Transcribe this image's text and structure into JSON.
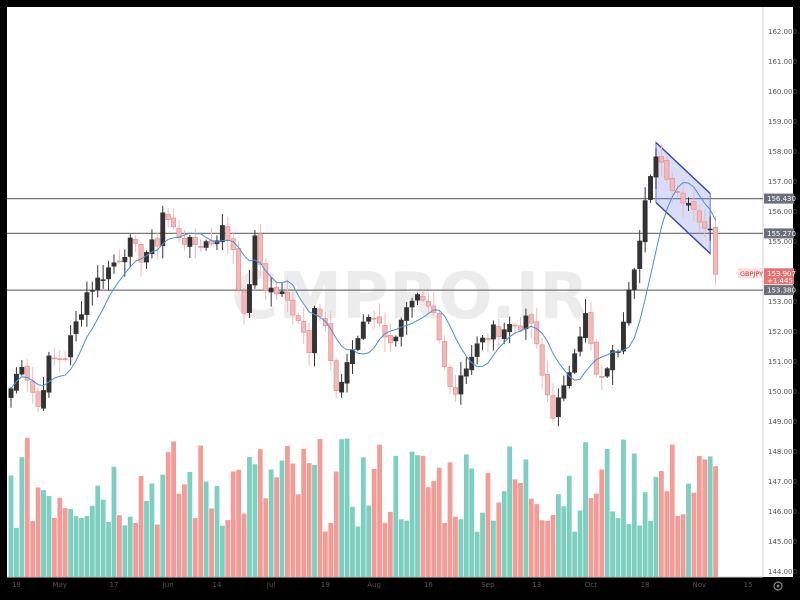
{
  "chart_data": {
    "type": "candlestick",
    "symbol": "GBPJPY",
    "watermark": "CMPRO.IR",
    "y_axis": {
      "range": [
        143.85,
        162.45
      ],
      "ticks": [
        "162.000",
        "161.000",
        "160.000",
        "159.000",
        "158.000",
        "157.000",
        "156.000",
        "155.000",
        "154.000",
        "153.000",
        "152.000",
        "151.000",
        "150.000",
        "149.000",
        "148.000",
        "147.000",
        "146.000",
        "145.000",
        "144.000"
      ]
    },
    "x_axis_labels": [
      {
        "label": "19",
        "index": 1
      },
      {
        "label": "May",
        "index": 9
      },
      {
        "label": "17",
        "index": 19
      },
      {
        "label": "Jun",
        "index": 29
      },
      {
        "label": "14",
        "index": 38
      },
      {
        "label": "Jul",
        "index": 48
      },
      {
        "label": "19",
        "index": 58
      },
      {
        "label": "Aug",
        "index": 67
      },
      {
        "label": "16",
        "index": 77
      },
      {
        "label": "Sep",
        "index": 88
      },
      {
        "label": "13",
        "index": 97
      },
      {
        "label": "Oct",
        "index": 107
      },
      {
        "label": "18",
        "index": 117
      },
      {
        "label": "Nov",
        "index": 127
      },
      {
        "label": "15",
        "index": 136
      }
    ],
    "levels": [
      {
        "value": 156.43,
        "label": "156.430"
      },
      {
        "value": 155.27,
        "label": "155.270"
      },
      {
        "value": 153.38,
        "label": "153.380"
      }
    ],
    "last_price": {
      "value": 153.907,
      "label": "153.907",
      "change": "+1.445"
    },
    "ma_color": "#4a90d9",
    "up_color": "#333333",
    "down_color": "#f2b9b9",
    "vol_up_color": "#7ecfc0",
    "vol_down_color": "#f29c98",
    "channel": {
      "p1": [
        119,
        158.3
      ],
      "p2": [
        129,
        156.6
      ],
      "p3": [
        129,
        154.6
      ],
      "p4": [
        119,
        156.3
      ],
      "color": "#7b86e6"
    },
    "waypoints": [
      [
        0,
        150.1
      ],
      [
        2,
        151.0
      ],
      [
        5,
        149.5
      ],
      [
        7,
        151.0
      ],
      [
        10,
        151.2
      ],
      [
        14,
        153.3
      ],
      [
        19,
        154.3
      ],
      [
        22,
        154.9
      ],
      [
        24,
        154.5
      ],
      [
        27,
        155.0
      ],
      [
        28,
        156.0
      ],
      [
        30,
        155.4
      ],
      [
        33,
        154.9
      ],
      [
        37,
        155.0
      ],
      [
        39,
        155.4
      ],
      [
        41,
        154.8
      ],
      [
        43,
        152.4
      ],
      [
        45,
        155.0
      ],
      [
        47,
        153.5
      ],
      [
        50,
        153.2
      ],
      [
        53,
        152.5
      ],
      [
        55,
        151.5
      ],
      [
        56,
        153.0
      ],
      [
        58,
        152.1
      ],
      [
        60,
        149.8
      ],
      [
        62,
        151.0
      ],
      [
        64,
        151.8
      ],
      [
        66,
        152.5
      ],
      [
        68,
        152.4
      ],
      [
        70,
        151.5
      ],
      [
        72,
        152.5
      ],
      [
        75,
        153.0
      ],
      [
        78,
        152.5
      ],
      [
        80,
        150.8
      ],
      [
        82,
        150.0
      ],
      [
        83,
        150.6
      ],
      [
        86,
        151.5
      ],
      [
        89,
        152.0
      ],
      [
        92,
        152.2
      ],
      [
        96,
        152.3
      ],
      [
        98,
        150.5
      ],
      [
        100,
        149.3
      ],
      [
        102,
        150.0
      ],
      [
        104,
        151.5
      ],
      [
        106,
        152.5
      ],
      [
        108,
        150.5
      ],
      [
        109,
        150.3
      ],
      [
        110,
        150.9
      ],
      [
        112,
        151.5
      ],
      [
        114,
        153.6
      ],
      [
        116,
        155.0
      ],
      [
        117,
        156.2
      ],
      [
        118,
        157.0
      ],
      [
        119,
        158.0
      ],
      [
        121,
        157.3
      ],
      [
        122,
        156.8
      ],
      [
        124,
        156.5
      ],
      [
        126,
        156.2
      ],
      [
        128,
        155.3
      ],
      [
        129,
        155.6
      ],
      [
        130,
        153.9
      ]
    ],
    "volume_range": [
      0,
      1
    ]
  }
}
